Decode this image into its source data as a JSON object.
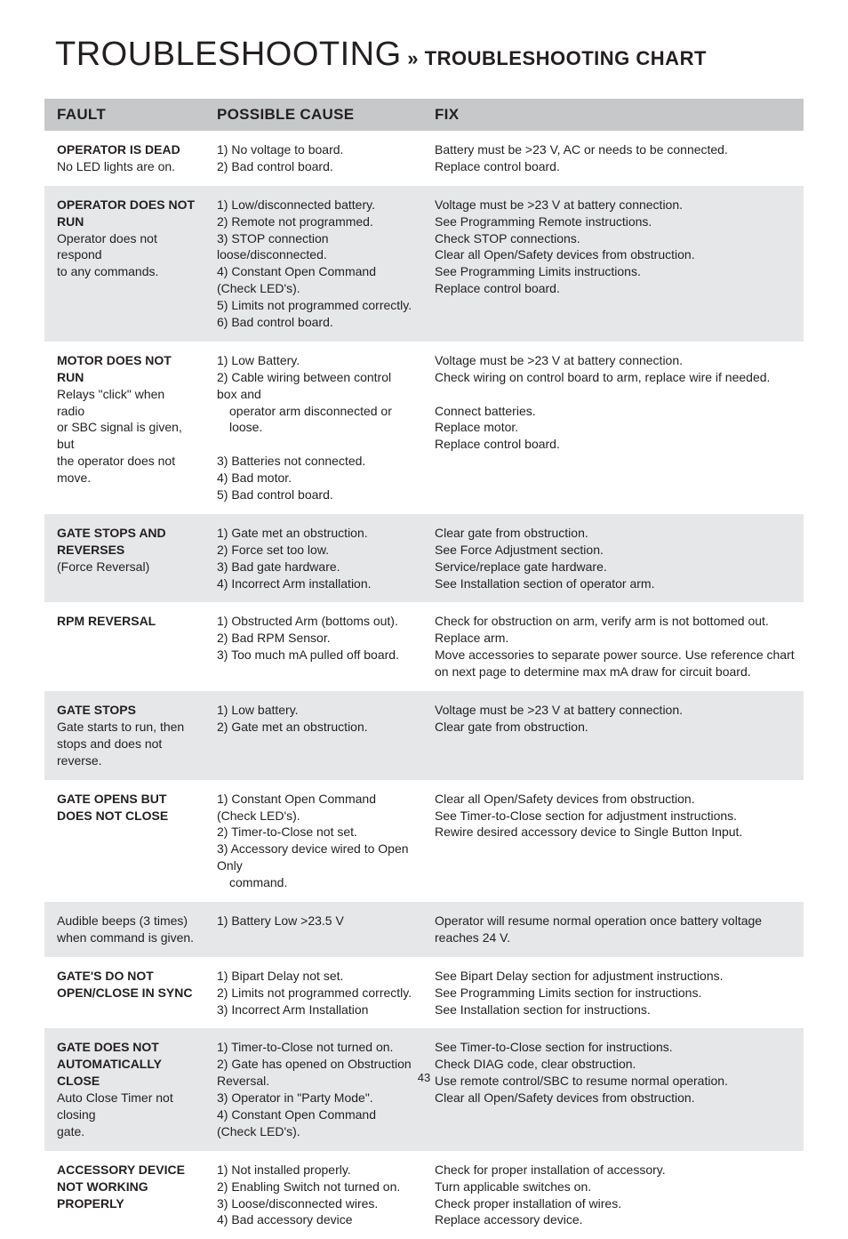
{
  "title_main": "TROUBLESHOOTING",
  "title_sep": " » ",
  "title_sub": "TROUBLESHOOTING CHART",
  "page_number": "43",
  "headers": {
    "fault": "FAULT",
    "cause": "POSSIBLE CAUSE",
    "fix": "FIX"
  },
  "rows": [
    {
      "alt": false,
      "fault": [
        "<b>OPERATOR IS DEAD</b>",
        "No LED lights are on."
      ],
      "cause": [
        "1) No voltage to board.",
        "2) Bad control board."
      ],
      "fix": [
        "Battery must be >23 V, AC or needs to be connected.",
        "Replace control board."
      ]
    },
    {
      "alt": true,
      "fault": [
        "<b>OPERATOR DOES NOT RUN</b>",
        "Operator does not respond",
        "to any commands."
      ],
      "cause": [
        "1) Low/disconnected battery.",
        "2) Remote not programmed.",
        "3) STOP connection loose/disconnected.",
        "4) Constant Open Command (Check LED's).",
        "5) Limits not programmed correctly.",
        "6) Bad control board."
      ],
      "fix": [
        "Voltage must be >23 V at battery connection.",
        "See Programming Remote instructions.",
        "Check STOP connections.",
        "Clear all Open/Safety devices from obstruction.",
        "See Programming Limits instructions.",
        "Replace control board."
      ]
    },
    {
      "alt": false,
      "fault": [
        "<b>MOTOR DOES NOT RUN</b>",
        "Relays \"click\" when radio",
        "or SBC signal is given, but",
        "the operator does not",
        "move."
      ],
      "cause": [
        "1) Low Battery.",
        "2) Cable wiring between control box and",
        "<i>operator arm disconnected or loose.</i>",
        "3) Batteries not connected.",
        "4) Bad motor.",
        "5) Bad control board."
      ],
      "fix": [
        "Voltage must be >23 V at battery connection.",
        "Check wiring on control board to arm, replace wire if needed.",
        "&nbsp;",
        "Connect batteries.",
        "Replace motor.",
        "Replace control board."
      ]
    },
    {
      "alt": true,
      "fault": [
        "<b>GATE STOPS AND REVERSES</b>",
        "(Force Reversal)"
      ],
      "cause": [
        "1) Gate met an obstruction.",
        "2) Force set too low.",
        "3) Bad gate hardware.",
        "4) Incorrect Arm installation."
      ],
      "fix": [
        "Clear gate from obstruction.",
        "See Force Adjustment section.",
        "Service/replace gate hardware.",
        "See Installation section of operator arm."
      ]
    },
    {
      "alt": false,
      "fault": [
        "<b>RPM REVERSAL</b>"
      ],
      "cause": [
        "1) Obstructed Arm (bottoms out).",
        "2) Bad RPM Sensor.",
        "3) Too much mA pulled off board."
      ],
      "fix": [
        "Check for obstruction on arm, verify arm is not bottomed out.",
        "Replace arm.",
        "Move accessories to separate power source. Use reference chart on next page to determine max mA draw for circuit board."
      ]
    },
    {
      "alt": true,
      "fault": [
        "<b>GATE STOPS</b>",
        "Gate starts to run, then",
        "stops and does not reverse."
      ],
      "cause": [
        "1) Low battery.",
        "2) Gate met an obstruction."
      ],
      "fix": [
        "Voltage must be >23 V at battery connection.",
        "Clear gate from obstruction."
      ]
    },
    {
      "alt": false,
      "fault": [
        "<b>GATE OPENS BUT DOES NOT CLOSE</b>"
      ],
      "cause": [
        "1) Constant Open Command (Check LED's).",
        "2) Timer-to-Close not set.",
        "3) Accessory device wired to Open Only",
        "<i>command.</i>"
      ],
      "fix": [
        "Clear all Open/Safety devices from obstruction.",
        "See Timer-to-Close section for adjustment instructions.",
        "Rewire desired accessory device to Single Button Input."
      ]
    },
    {
      "alt": true,
      "fault": [
        "Audible beeps (3 times) when command is given."
      ],
      "cause": [
        "1) Battery Low >23.5 V"
      ],
      "fix": [
        "Operator will resume normal operation once battery voltage reaches 24 V."
      ]
    },
    {
      "alt": false,
      "fault": [
        "<b>GATE'S DO NOT OPEN/CLOSE IN SYNC</b>"
      ],
      "cause": [
        "1) Bipart Delay not set.",
        "2) Limits not programmed correctly.",
        "3) Incorrect Arm Installation"
      ],
      "fix": [
        "See Bipart Delay section for adjustment instructions.",
        "See Programming Limits section for instructions.",
        "See Installation section for instructions."
      ]
    },
    {
      "alt": true,
      "fault": [
        "<b>GATE DOES NOT AUTOMATICALLY CLOSE</b>",
        "Auto Close Timer not closing",
        "gate."
      ],
      "cause": [
        "1) Timer-to-Close not turned on.",
        "2) Gate has opened on Obstruction Reversal.",
        "3) Operator in \"Party Mode\".",
        "4) Constant Open Command (Check LED's)."
      ],
      "fix": [
        "See Timer-to-Close section for instructions.",
        "Check DIAG code, clear obstruction.",
        "Use remote control/SBC to resume normal operation.",
        "Clear all Open/Safety devices from obstruction."
      ]
    },
    {
      "alt": false,
      "fault": [
        "<b>ACCESSORY DEVICE NOT WORKING PROPERLY</b>"
      ],
      "cause": [
        "1) Not installed properly.",
        "2) Enabling Switch not turned on.",
        "3) Loose/disconnected wires.",
        "4) Bad accessory device"
      ],
      "fix": [
        "Check for proper installation of accessory.",
        "Turn applicable switches on.",
        "Check proper installation of wires.",
        "Replace accessory device."
      ]
    }
  ]
}
